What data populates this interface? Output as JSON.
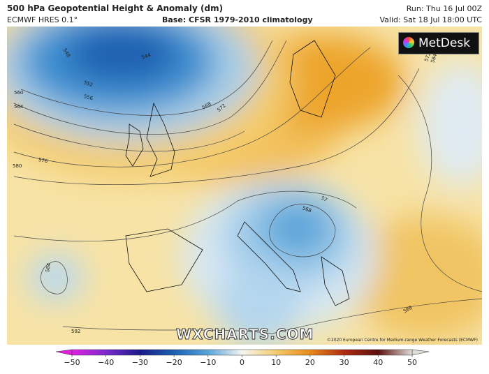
{
  "header": {
    "title": "500 hPa Geopotential Height & Anomaly (dm)",
    "model": "ECMWF HRES 0.1°",
    "base": "Base: CFSR 1979-2010 climatology",
    "run": "Run: Thu 16 Jul 00Z",
    "valid": "Valid: Sat 18 Jul 18:00 UTC"
  },
  "logo": "MetDesk",
  "watermark": "WXCHARTS.COM",
  "copyright": "©2020 European Centre for Medium-range Weather Forecasts (ECMWF)",
  "contour_labels": [
    "548",
    "544",
    "552",
    "556",
    "560",
    "564",
    "568",
    "572",
    "576",
    "580",
    "584",
    "588",
    "592",
    "572",
    "568",
    "57",
    "584"
  ],
  "colorbar": {
    "range": [
      -50,
      50
    ],
    "ticks": [
      {
        "value": -50,
        "label": "−50"
      },
      {
        "value": -40,
        "label": "−40"
      },
      {
        "value": -30,
        "label": "−30"
      },
      {
        "value": -20,
        "label": "−20"
      },
      {
        "value": -10,
        "label": "−10"
      },
      0,
      10,
      20,
      30,
      40,
      50
    ]
  }
}
